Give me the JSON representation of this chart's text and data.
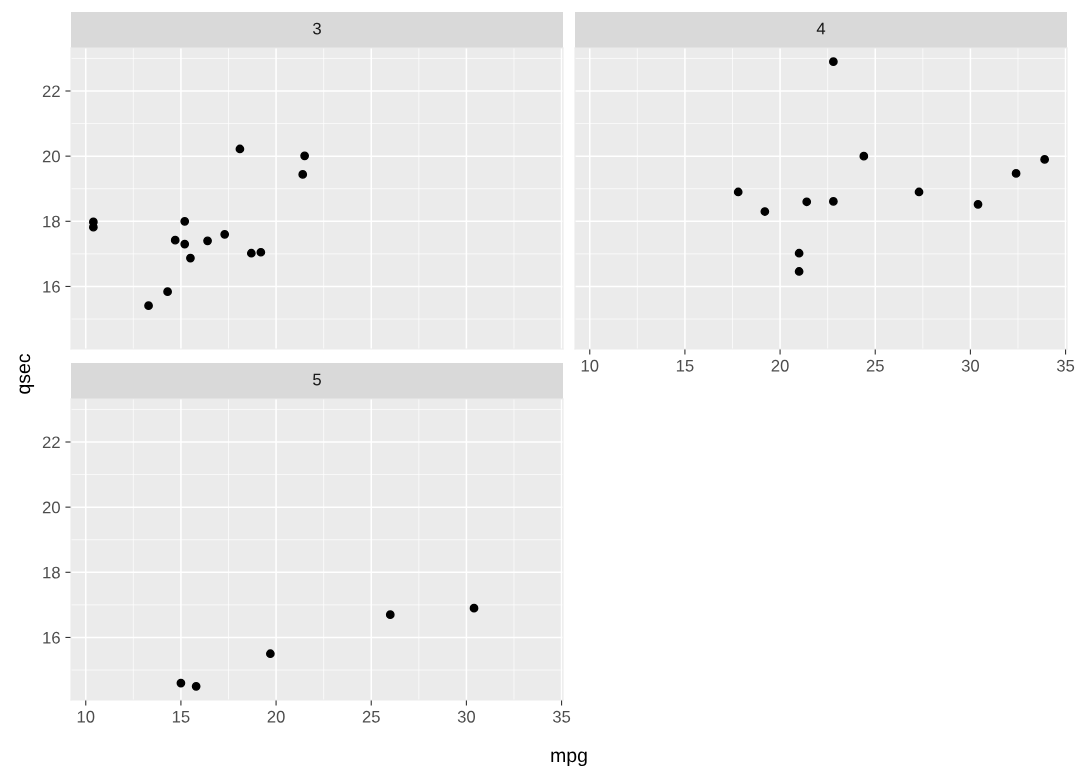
{
  "chart_data": [
    {
      "type": "scatter",
      "title": "3",
      "x": [
        21.4,
        18.7,
        18.1,
        14.3,
        16.4,
        17.3,
        15.2,
        10.4,
        10.4,
        14.7,
        21.5,
        15.5,
        15.2,
        13.3,
        19.2
      ],
      "series": [
        {
          "color": "#000000",
          "values": [
            19.44,
            17.02,
            20.22,
            15.84,
            17.4,
            17.6,
            18.0,
            17.98,
            17.82,
            17.42,
            20.01,
            16.87,
            17.3,
            15.41,
            17.05
          ]
        }
      ],
      "xlim": [
        9.225,
        35.075
      ],
      "ylim": [
        14.08,
        23.32
      ],
      "xticks": [
        10,
        15,
        20,
        25,
        30,
        35
      ],
      "yticks": [
        16,
        18,
        20,
        22
      ],
      "grid": true,
      "marker": "circle",
      "tick_labels": "y"
    },
    {
      "type": "scatter",
      "title": "4",
      "x": [
        21.0,
        21.0,
        22.8,
        24.4,
        22.8,
        19.2,
        17.8,
        32.4,
        30.4,
        33.9,
        27.3,
        21.4
      ],
      "series": [
        {
          "color": "#000000",
          "values": [
            16.46,
            17.02,
            18.61,
            20.0,
            22.9,
            18.3,
            18.9,
            19.47,
            18.52,
            19.9,
            18.9,
            18.6
          ]
        }
      ],
      "xlim": [
        9.225,
        35.075
      ],
      "ylim": [
        14.08,
        23.32
      ],
      "xticks": [
        10,
        15,
        20,
        25,
        30,
        35
      ],
      "yticks": [
        16,
        18,
        20,
        22
      ],
      "grid": true,
      "marker": "circle",
      "tick_labels": "x"
    },
    {
      "type": "scatter",
      "title": "5",
      "xlabel": "mpg",
      "ylabel": "qsec",
      "x": [
        26.0,
        30.4,
        15.8,
        19.7,
        15.0
      ],
      "series": [
        {
          "color": "#000000",
          "values": [
            16.7,
            16.9,
            14.5,
            15.5,
            14.6
          ]
        }
      ],
      "xlim": [
        9.225,
        35.075
      ],
      "ylim": [
        14.08,
        23.32
      ],
      "xticks": [
        10,
        15,
        20,
        25,
        30,
        35
      ],
      "yticks": [
        16,
        18,
        20,
        22
      ],
      "grid": true,
      "marker": "circle"
    }
  ]
}
